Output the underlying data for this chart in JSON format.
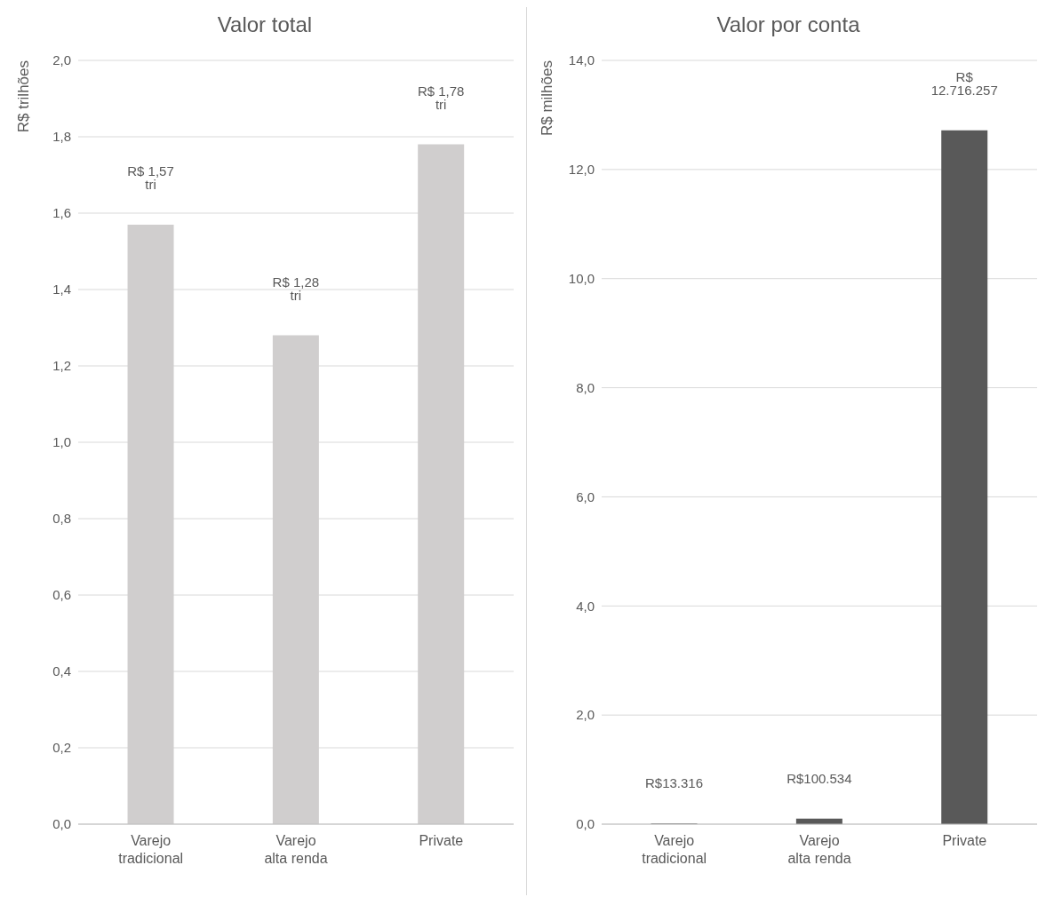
{
  "chart_data": [
    {
      "type": "bar",
      "title": "Valor total",
      "ylabel": "R$ trilhões",
      "categories": [
        "Varejo tradicional",
        "Varejo alta renda",
        "Private"
      ],
      "values": [
        1.57,
        1.28,
        1.78
      ],
      "value_labels": [
        "R$ 1,57 tri",
        "R$ 1,28 tri",
        "R$ 1,78 tri"
      ],
      "color": "#d0cece",
      "ylim": [
        0,
        2
      ],
      "yticks": [
        {
          "value": 0,
          "label": "0,0"
        },
        {
          "value": 0.2,
          "label": "0,2"
        },
        {
          "value": 0.4,
          "label": "0,4"
        },
        {
          "value": 0.6,
          "label": "0,6"
        },
        {
          "value": 0.8,
          "label": "0,8"
        },
        {
          "value": 1,
          "label": "1,0"
        },
        {
          "value": 1.2,
          "label": "1,2"
        },
        {
          "value": 1.4,
          "label": "1,4"
        },
        {
          "value": 1.6,
          "label": "1,6"
        },
        {
          "value": 1.8,
          "label": "1,8"
        },
        {
          "value": 2,
          "label": "2,0"
        }
      ],
      "grid": "y"
    },
    {
      "type": "bar",
      "title": "Valor por conta",
      "ylabel": "R$ milhões",
      "categories": [
        "Varejo tradicional",
        "Varejo alta renda",
        "Private"
      ],
      "values": [
        0.013316,
        0.100534,
        12.716257
      ],
      "value_labels": [
        "R$13.316",
        "R$100.534",
        "R$ 12.716.257"
      ],
      "color": "#595959",
      "ylim": [
        0,
        14
      ],
      "yticks": [
        {
          "value": 0,
          "label": "0,0"
        },
        {
          "value": 2,
          "label": "2,0"
        },
        {
          "value": 4,
          "label": "4,0"
        },
        {
          "value": 6,
          "label": "6,0"
        },
        {
          "value": 8,
          "label": "8,0"
        },
        {
          "value": 10,
          "label": "10,0"
        },
        {
          "value": 12,
          "label": "12,0"
        },
        {
          "value": 14,
          "label": "14,0"
        }
      ],
      "grid": "y"
    }
  ]
}
